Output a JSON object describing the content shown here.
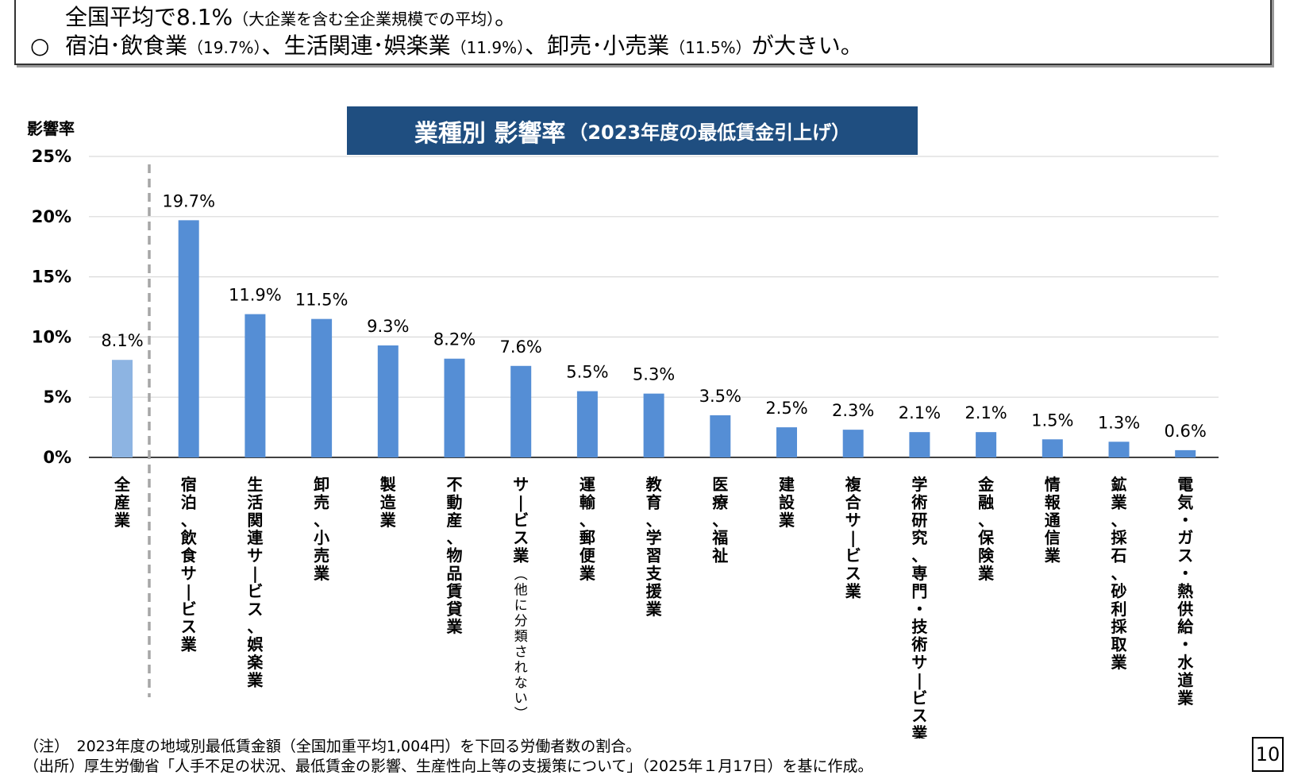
{
  "summary": {
    "line1_main": "全国平均で8.1%",
    "line1_note": "（大企業を含む全企業規模での平均）",
    "line1_end": "。",
    "line2_mark": "○",
    "line2_a": "宿泊･飲食業",
    "line2_a_val": "（19.7%）",
    "line2_sep1": "、生活関連･娯楽業",
    "line2_b_val": "（11.9%）",
    "line2_sep2": "、卸売･小売業",
    "line2_c_val": "（11.5%）",
    "line2_end": "が大きい。"
  },
  "chart_data": {
    "type": "bar",
    "title": "業種別 影響率",
    "subtitle": "（2023年度の最低賃金引上げ）",
    "ylabel": "影響率",
    "ylim": [
      0,
      25
    ],
    "yticks": [
      "0%",
      "5%",
      "10%",
      "15%",
      "20%",
      "25%"
    ],
    "grid": true,
    "categories": [
      "全産業",
      "宿泊、飲食サービス業",
      "生活関連サービス、娯楽業",
      "卸売、小売業",
      "製造業",
      "不動産、物品賃貸業",
      "サービス業（他に分類されない）",
      "運輸、郵便業",
      "教育、学習支援業",
      "医療、福祉",
      "建設業",
      "複合サービス業",
      "学術研究、専門・技術サービス業",
      "金融、保険業",
      "情報通信業",
      "鉱業、採石、砂利採取業",
      "電気・ガス・熱供給・水道業"
    ],
    "values": [
      8.1,
      19.7,
      11.9,
      11.5,
      9.3,
      8.2,
      7.6,
      5.5,
      5.3,
      3.5,
      2.5,
      2.3,
      2.1,
      2.1,
      1.5,
      1.3,
      0.6
    ],
    "data_labels": [
      "8.1%",
      "19.7%",
      "11.9%",
      "11.5%",
      "9.3%",
      "8.2%",
      "7.6%",
      "5.5%",
      "5.3%",
      "3.5%",
      "2.5%",
      "2.3%",
      "2.1%",
      "2.1%",
      "1.5%",
      "1.3%",
      "0.6%"
    ],
    "colors": {
      "all_industry": "#8db4e2",
      "industry": "#558ed5",
      "grid": "#d9d9d9",
      "divider": "#a6a6a6"
    }
  },
  "notes": {
    "note1": "（注）　2023年度の地域別最低賃金額（全国加重平均1,004円）を下回る労働者数の割合。",
    "note2": "（出所）厚生労働省「人手不足の状況、最低賃金の影響、生産性向上等の支援策について」（2025年１月17日）を基に作成。"
  },
  "page_number": "10"
}
